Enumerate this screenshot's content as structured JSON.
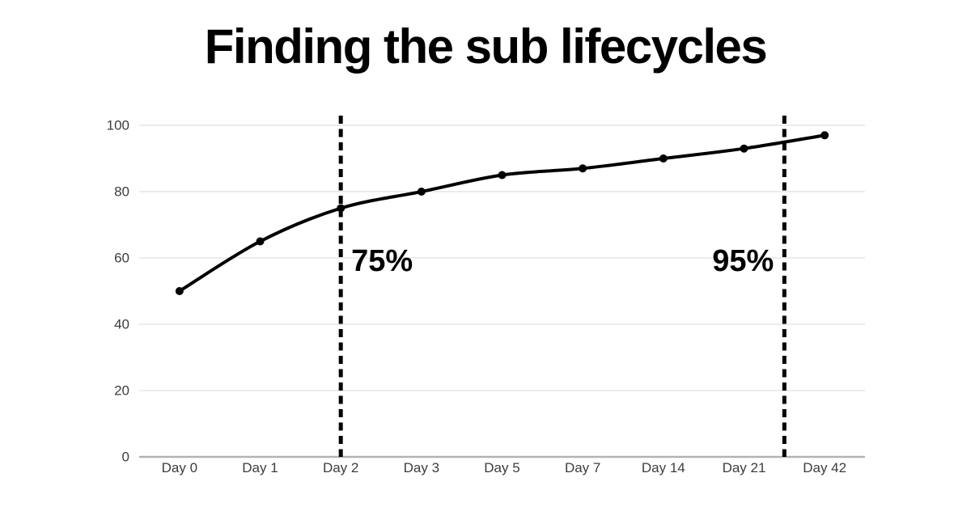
{
  "title": "Finding the sub lifecycles",
  "colors": {
    "background": "#ffffff",
    "series_line": "#000000",
    "marker": "#000000",
    "gridline": "#e6e6e6",
    "axis_line": "#b3b3b3",
    "tick_label": "#3d3d3d",
    "annotation": "#000000",
    "title": "#000000"
  },
  "chart_data": {
    "type": "line",
    "title": "Finding the sub lifecycles",
    "categories": [
      "Day 0",
      "Day 1",
      "Day 2",
      "Day 3",
      "Day 5",
      "Day 7",
      "Day 14",
      "Day 21",
      "Day 42"
    ],
    "values": [
      50,
      65,
      75,
      80,
      85,
      87,
      90,
      93,
      97
    ],
    "xlabel": "",
    "ylabel": "",
    "ylim": [
      0,
      100
    ],
    "y_ticks": [
      0,
      20,
      40,
      60,
      80,
      100
    ],
    "grid": true,
    "legend": "none",
    "line_style": "smooth",
    "marker": "dot",
    "annotations": [
      {
        "label": "75%",
        "value": 75,
        "label_side": "right",
        "line_style": "dashed"
      },
      {
        "label": "95%",
        "value": 95,
        "label_side": "left",
        "line_style": "dashed"
      }
    ]
  }
}
